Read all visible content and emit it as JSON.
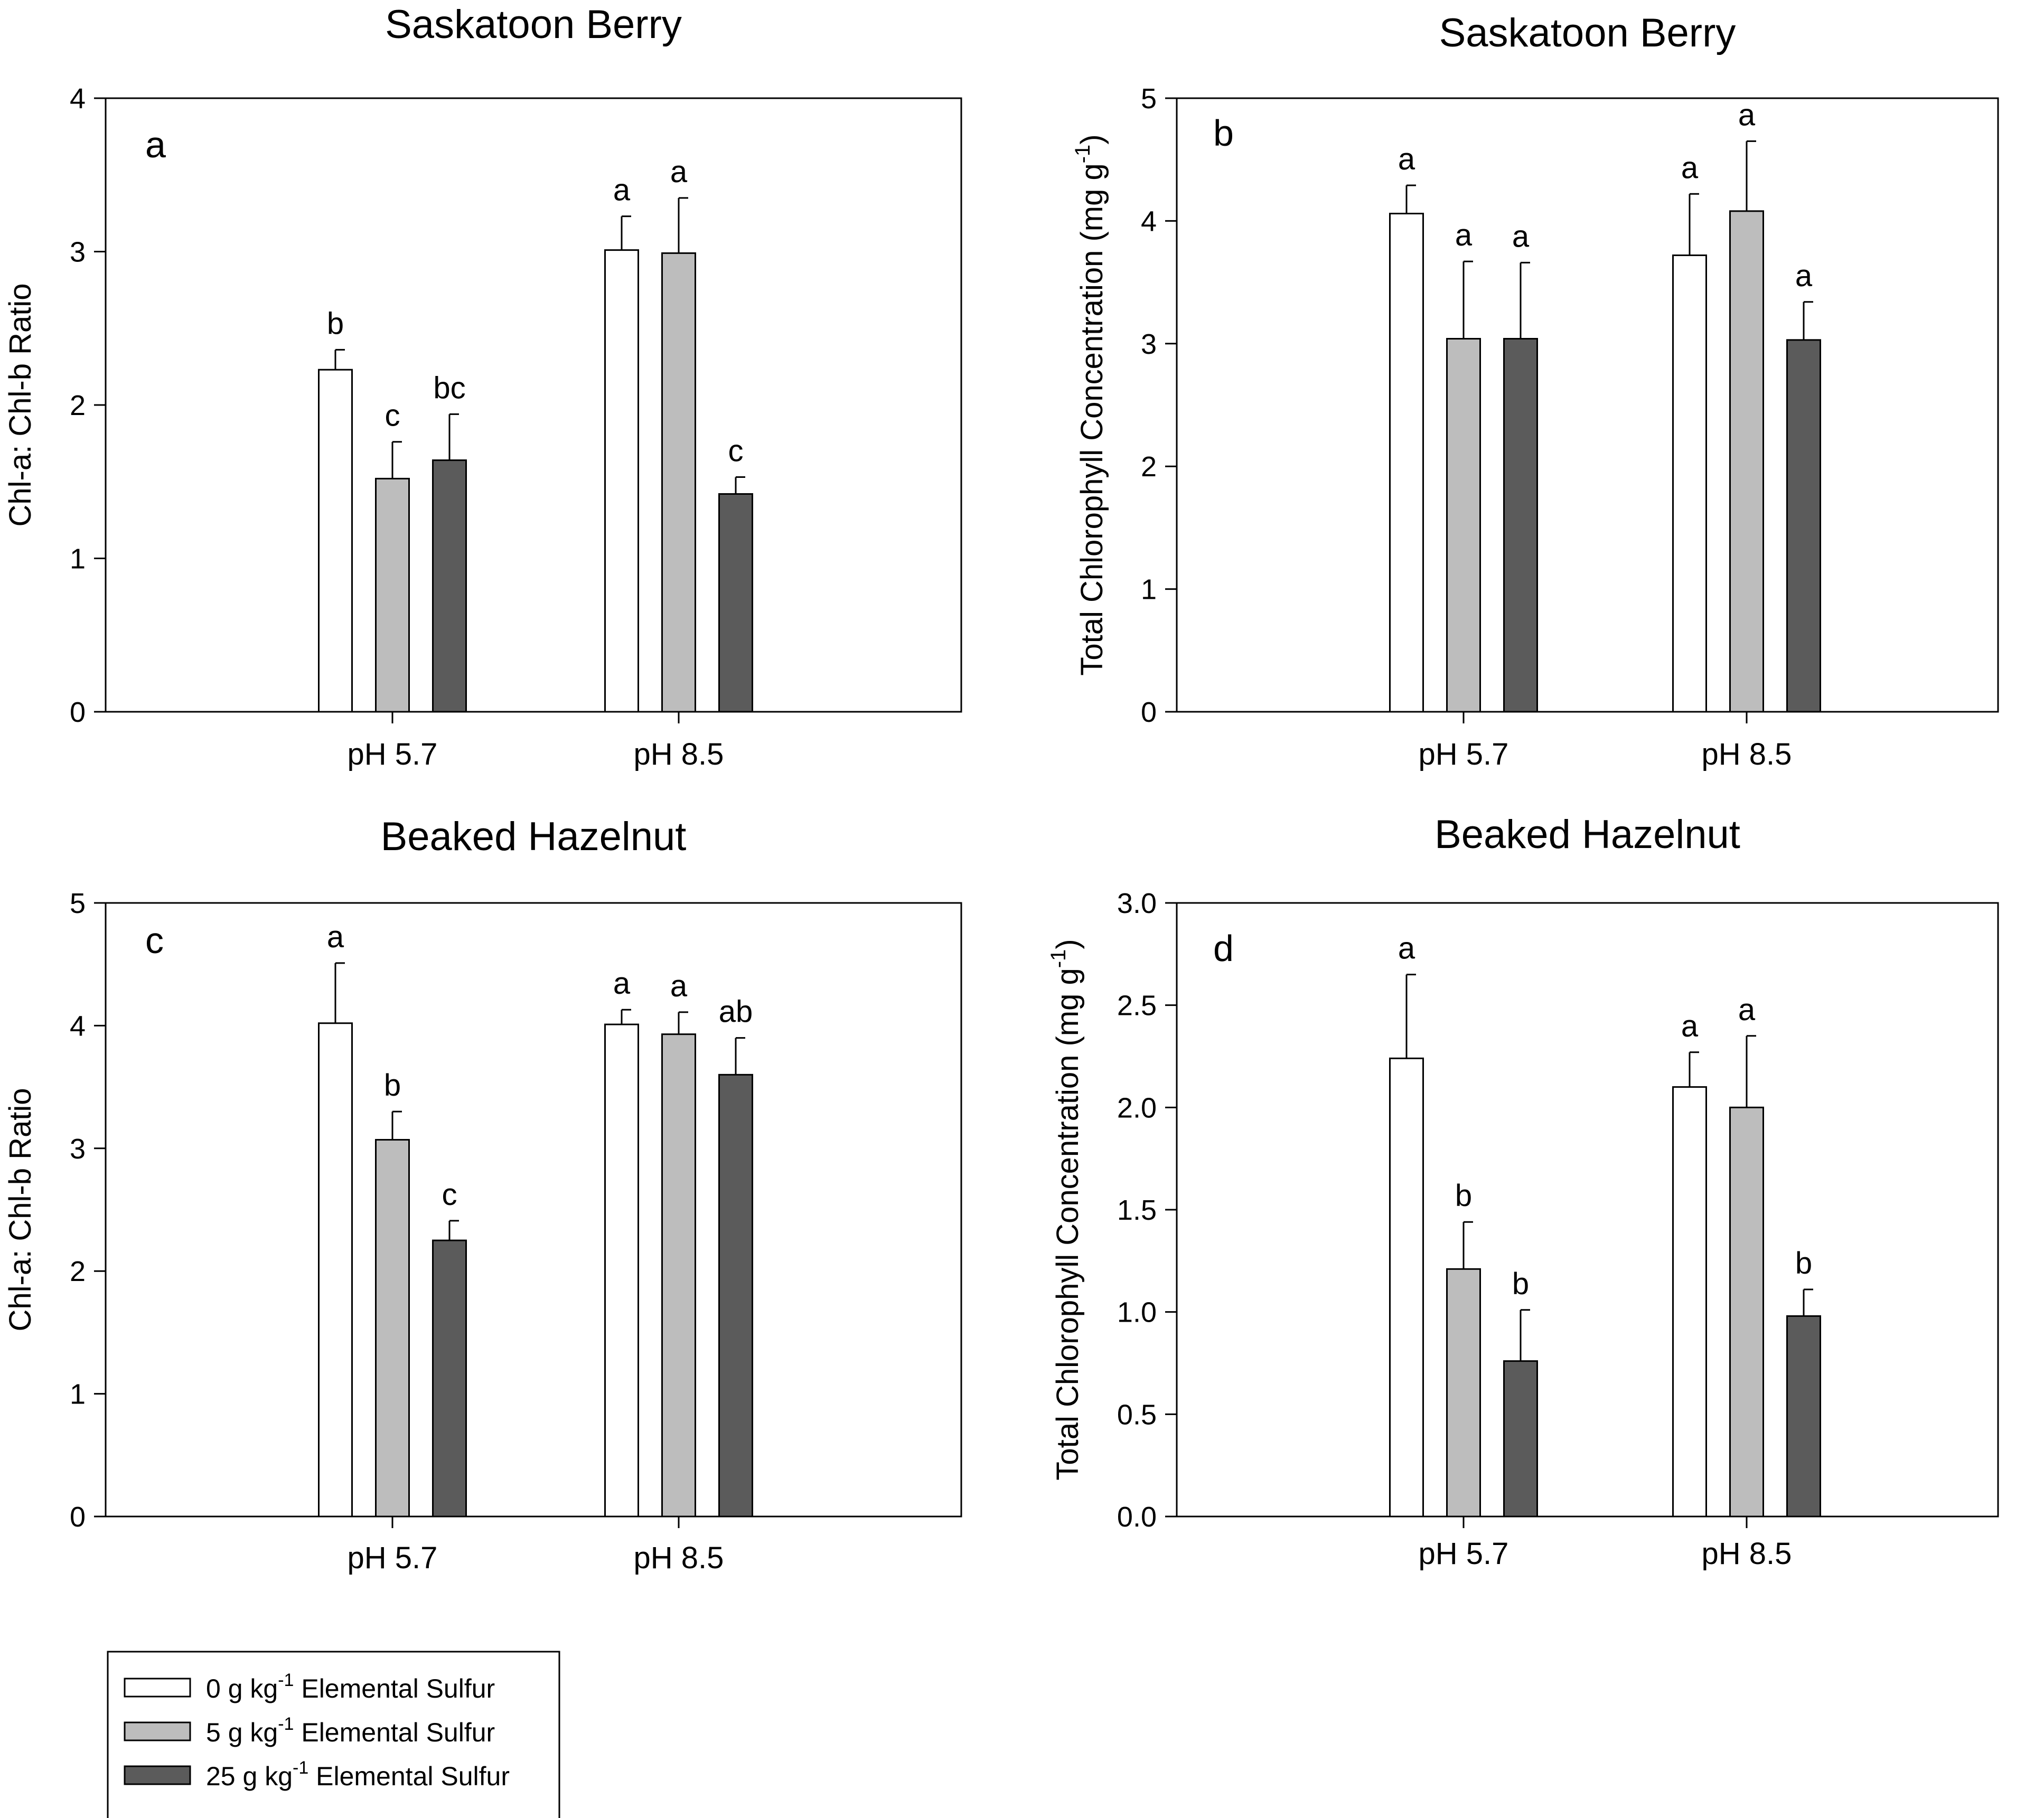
{
  "figure": {
    "legend": {
      "unit_prefix": "g kg",
      "unit_exponent": "-1",
      "suffix": "Elemental Sulfur",
      "entries": [
        {
          "amount": "0",
          "color": "#ffffff"
        },
        {
          "amount": "5",
          "color": "#bdbdbd"
        },
        {
          "amount": "25",
          "color": "#5b5b5b"
        }
      ]
    }
  },
  "chart_data": [
    {
      "type": "bar",
      "panel": "a",
      "title": "Saskatoon Berry",
      "ylabel": "Chl-a: Chl-b Ratio",
      "ylim": [
        0,
        4
      ],
      "yticks": [
        "0",
        "1",
        "2",
        "3",
        "4"
      ],
      "categories": [
        "pH 5.7",
        "pH 8.5"
      ],
      "series": [
        {
          "name": "0 g kg-1 Elemental Sulfur",
          "values": [
            2.23,
            3.01
          ],
          "errors": [
            0.13,
            0.22
          ],
          "letters": [
            "b",
            "a"
          ]
        },
        {
          "name": "5 g kg-1 Elemental Sulfur",
          "values": [
            1.52,
            2.99
          ],
          "errors": [
            0.24,
            0.36
          ],
          "letters": [
            "c",
            "a"
          ]
        },
        {
          "name": "25 g kg-1 Elemental Sulfur",
          "values": [
            1.64,
            1.42
          ],
          "errors": [
            0.3,
            0.11
          ],
          "letters": [
            "bc",
            "c"
          ]
        }
      ]
    },
    {
      "type": "bar",
      "panel": "b",
      "title": "Saskatoon Berry",
      "ylabel": "Total Chlorophyll Concentration (mg g",
      "ylabel_exponent": "-1",
      "ylabel_close": ")",
      "ylim": [
        0,
        5
      ],
      "yticks": [
        "0",
        "1",
        "2",
        "3",
        "4",
        "5"
      ],
      "categories": [
        "pH 5.7",
        "pH 8.5"
      ],
      "series": [
        {
          "name": "0 g kg-1 Elemental Sulfur",
          "values": [
            4.06,
            3.72
          ],
          "errors": [
            0.23,
            0.5
          ],
          "letters": [
            "a",
            "a"
          ]
        },
        {
          "name": "5 g kg-1 Elemental Sulfur",
          "values": [
            3.04,
            4.08
          ],
          "errors": [
            0.63,
            0.57
          ],
          "letters": [
            "a",
            "a"
          ]
        },
        {
          "name": "25 g kg-1 Elemental Sulfur",
          "values": [
            3.04,
            3.03
          ],
          "errors": [
            0.62,
            0.31
          ],
          "letters": [
            "a",
            "a"
          ]
        }
      ]
    },
    {
      "type": "bar",
      "panel": "c",
      "title": "Beaked Hazelnut",
      "ylabel": "Chl-a: Chl-b Ratio",
      "ylim": [
        0,
        5
      ],
      "yticks": [
        "0",
        "1",
        "2",
        "3",
        "4",
        "5"
      ],
      "categories": [
        "pH 5.7",
        "pH 8.5"
      ],
      "series": [
        {
          "name": "0 g kg-1 Elemental Sulfur",
          "values": [
            4.02,
            4.01
          ],
          "errors": [
            0.49,
            0.12
          ],
          "letters": [
            "a",
            "a"
          ]
        },
        {
          "name": "5 g kg-1 Elemental Sulfur",
          "values": [
            3.07,
            3.93
          ],
          "errors": [
            0.23,
            0.18
          ],
          "letters": [
            "b",
            "a"
          ]
        },
        {
          "name": "25 g kg-1 Elemental Sulfur",
          "values": [
            2.25,
            3.6
          ],
          "errors": [
            0.16,
            0.3
          ],
          "letters": [
            "c",
            "ab"
          ]
        }
      ]
    },
    {
      "type": "bar",
      "panel": "d",
      "title": "Beaked Hazelnut",
      "ylabel": "Total Chlorophyll Concentration (mg g",
      "ylabel_exponent": "-1",
      "ylabel_close": ")",
      "ylim": [
        0,
        3
      ],
      "yticks": [
        "0.0",
        "0.5",
        "1.0",
        "1.5",
        "2.0",
        "2.5",
        "3.0"
      ],
      "categories": [
        "pH 5.7",
        "pH 8.5"
      ],
      "series": [
        {
          "name": "0 g kg-1 Elemental Sulfur",
          "values": [
            2.24,
            2.1
          ],
          "errors": [
            0.41,
            0.17
          ],
          "letters": [
            "a",
            "a"
          ]
        },
        {
          "name": "5 g kg-1 Elemental Sulfur",
          "values": [
            1.21,
            2.0
          ],
          "errors": [
            0.23,
            0.35
          ],
          "letters": [
            "b",
            "a"
          ]
        },
        {
          "name": "25 g kg-1 Elemental Sulfur",
          "values": [
            0.76,
            0.98
          ],
          "errors": [
            0.25,
            0.13
          ],
          "letters": [
            "b",
            "b"
          ]
        }
      ]
    }
  ]
}
